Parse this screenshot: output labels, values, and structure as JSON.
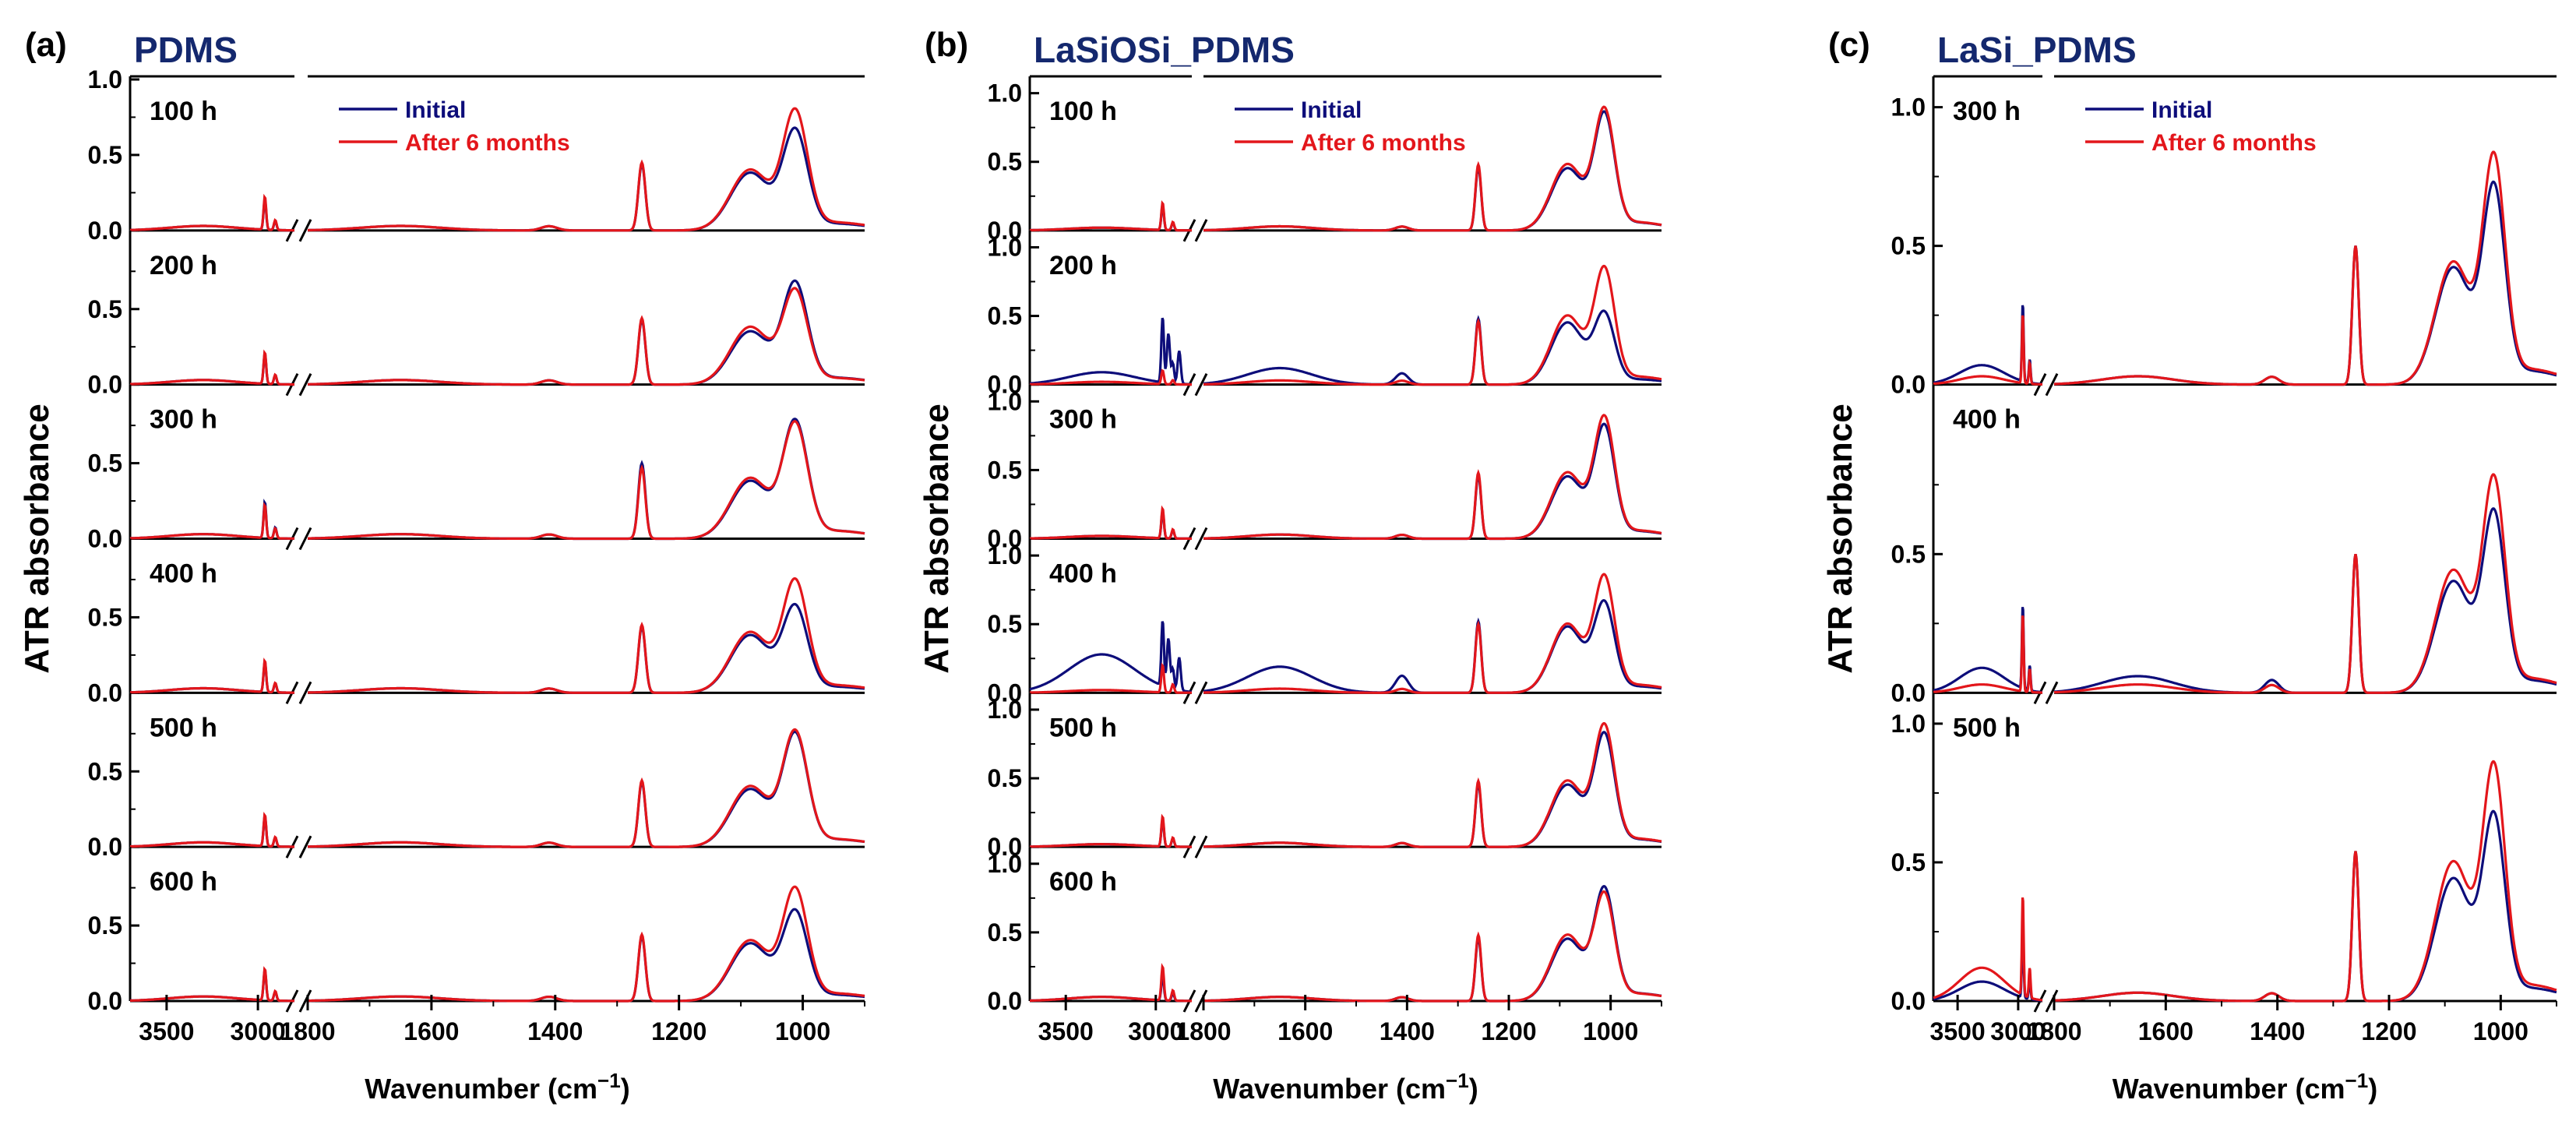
{
  "colors": {
    "initial": "#0d0d7a",
    "after": "#e3161b",
    "title": "#14286e",
    "axis": "#000000"
  },
  "chart_data": [
    {
      "type": "line",
      "panel_label": "(a)",
      "title": "PDMS",
      "xlabel": "Wavenumber (cm",
      "xlabel_sup": "−1",
      "xlabel_close": ")",
      "ylabel": "ATR absorbance",
      "x_segments": [
        [
          3700,
          2800
        ],
        [
          1800,
          900
        ]
      ],
      "x_ticks": [
        3500,
        3000,
        1800,
        1600,
        1400,
        1200,
        1000
      ],
      "legend": {
        "initial": "Initial",
        "after": "After 6 months",
        "placement": "top-center"
      },
      "subplots": [
        {
          "label": "100 h",
          "ylim": [
            0,
            1.0
          ],
          "y_ticks": [
            "0.0",
            "0.5",
            "1.0"
          ],
          "peaks_initial": [
            0.03,
            0.2,
            0.03,
            0.44,
            0.38,
            0.76
          ],
          "peaks_after": [
            0.03,
            0.22,
            0.03,
            0.45,
            0.4,
            0.89
          ]
        },
        {
          "label": "200 h",
          "ylim": [
            0,
            1.0
          ],
          "y_ticks": [
            "0.0",
            "0.5"
          ],
          "peaks_initial": [
            0.03,
            0.2,
            0.03,
            0.43,
            0.35,
            0.76
          ],
          "peaks_after": [
            0.03,
            0.21,
            0.03,
            0.44,
            0.38,
            0.72
          ]
        },
        {
          "label": "300 h",
          "ylim": [
            0,
            1.0
          ],
          "y_ticks": [
            "0.0",
            "0.5"
          ],
          "peaks_initial": [
            0.03,
            0.24,
            0.03,
            0.5,
            0.38,
            0.87
          ],
          "peaks_after": [
            0.03,
            0.22,
            0.03,
            0.47,
            0.4,
            0.86
          ]
        },
        {
          "label": "400 h",
          "ylim": [
            0,
            1.0
          ],
          "y_ticks": [
            "0.0",
            "0.5"
          ],
          "peaks_initial": [
            0.03,
            0.2,
            0.03,
            0.44,
            0.38,
            0.67
          ],
          "peaks_after": [
            0.03,
            0.21,
            0.03,
            0.45,
            0.4,
            0.84
          ]
        },
        {
          "label": "500 h",
          "ylim": [
            0,
            1.0
          ],
          "y_ticks": [
            "0.0",
            "0.5"
          ],
          "peaks_initial": [
            0.03,
            0.2,
            0.03,
            0.43,
            0.38,
            0.84
          ],
          "peaks_after": [
            0.03,
            0.21,
            0.03,
            0.44,
            0.4,
            0.86
          ]
        },
        {
          "label": "600 h",
          "ylim": [
            0,
            1.0
          ],
          "y_ticks": [
            "0.0",
            "0.5"
          ],
          "peaks_initial": [
            0.03,
            0.2,
            0.03,
            0.43,
            0.38,
            0.69
          ],
          "peaks_after": [
            0.03,
            0.21,
            0.03,
            0.44,
            0.4,
            0.84
          ]
        }
      ]
    },
    {
      "type": "line",
      "panel_label": "(b)",
      "title": "LaSiOSi_PDMS",
      "xlabel": "Wavenumber (cm",
      "xlabel_sup": "−1",
      "xlabel_close": ")",
      "ylabel": "ATR absorbance",
      "x_segments": [
        [
          3700,
          2800
        ],
        [
          1800,
          900
        ]
      ],
      "x_ticks": [
        3500,
        3000,
        1800,
        1600,
        1400,
        1200,
        1000
      ],
      "legend": {
        "initial": "Initial",
        "after": "After 6 months",
        "placement": "top-center"
      },
      "subplots": [
        {
          "label": "100 h",
          "ylim": [
            0,
            1.1
          ],
          "y_ticks": [
            "0.0",
            "0.5",
            "1.0"
          ],
          "peaks_initial": [
            0.02,
            0.18,
            0.03,
            0.46,
            0.45,
            0.96
          ],
          "peaks_after": [
            0.02,
            0.2,
            0.03,
            0.48,
            0.48,
            1.0
          ]
        },
        {
          "label": "200 h",
          "ylim": [
            0,
            1.1
          ],
          "y_ticks": [
            "0.0",
            "0.5",
            "1.0"
          ],
          "peaks_initial": [
            0.09,
            0.48,
            0.12,
            0.48,
            0.45,
            0.64
          ],
          "peaks_after": [
            0.02,
            0.1,
            0.03,
            0.46,
            0.5,
            0.97
          ]
        },
        {
          "label": "300 h",
          "ylim": [
            0,
            1.1
          ],
          "y_ticks": [
            "0.0",
            "0.5",
            "1.0"
          ],
          "peaks_initial": [
            0.02,
            0.2,
            0.03,
            0.46,
            0.45,
            0.93
          ],
          "peaks_after": [
            0.02,
            0.22,
            0.03,
            0.48,
            0.48,
            1.0
          ]
        },
        {
          "label": "400 h",
          "ylim": [
            0,
            1.1
          ],
          "y_ticks": [
            "0.0",
            "0.5",
            "1.0"
          ],
          "peaks_initial": [
            0.28,
            0.48,
            0.19,
            0.52,
            0.48,
            0.78
          ],
          "peaks_after": [
            0.02,
            0.2,
            0.03,
            0.5,
            0.5,
            0.97
          ]
        },
        {
          "label": "500 h",
          "ylim": [
            0,
            1.1
          ],
          "y_ticks": [
            "0.0",
            "0.5",
            "1.0"
          ],
          "peaks_initial": [
            0.02,
            0.2,
            0.03,
            0.46,
            0.45,
            0.93
          ],
          "peaks_after": [
            0.02,
            0.22,
            0.03,
            0.48,
            0.48,
            1.0
          ]
        },
        {
          "label": "600 h",
          "ylim": [
            0,
            1.1
          ],
          "y_ticks": [
            "0.0",
            "0.5",
            "1.0"
          ],
          "peaks_initial": [
            0.03,
            0.18,
            0.03,
            0.46,
            0.45,
            0.93
          ],
          "peaks_after": [
            0.03,
            0.25,
            0.03,
            0.48,
            0.48,
            0.9
          ]
        }
      ]
    },
    {
      "type": "line",
      "panel_label": "(c)",
      "title": "LaSi_PDMS",
      "xlabel": "Wavenumber (cm",
      "xlabel_sup": "−1",
      "xlabel_close": ")",
      "ylabel": "ATR absorbance",
      "x_segments": [
        [
          3700,
          2800
        ],
        [
          1800,
          900
        ]
      ],
      "x_ticks": [
        3500,
        3000,
        1800,
        1600,
        1400,
        1200,
        1000
      ],
      "legend": {
        "initial": "Initial",
        "after": "After 6 months",
        "placement": "top-center"
      },
      "subplots": [
        {
          "label": "300 h",
          "ylim": [
            0,
            1.1
          ],
          "y_ticks": [
            "0.0",
            "0.5",
            "1.0"
          ],
          "peaks_initial": [
            0.07,
            0.28,
            0.03,
            0.5,
            0.42,
            0.82
          ],
          "peaks_after": [
            0.03,
            0.25,
            0.03,
            0.5,
            0.44,
            0.93
          ]
        },
        {
          "label": "400 h",
          "ylim": [
            0,
            1.1
          ],
          "y_ticks": [
            "0.0",
            "0.5"
          ],
          "peaks_initial": [
            0.09,
            0.3,
            0.06,
            0.5,
            0.4,
            0.75
          ],
          "peaks_after": [
            0.03,
            0.28,
            0.03,
            0.5,
            0.44,
            0.88
          ]
        },
        {
          "label": "500 h",
          "ylim": [
            0,
            1.1
          ],
          "y_ticks": [
            "0.0",
            "0.5",
            "1.0"
          ],
          "peaks_initial": [
            0.07,
            0.25,
            0.03,
            0.54,
            0.44,
            0.78
          ],
          "peaks_after": [
            0.12,
            0.36,
            0.03,
            0.54,
            0.5,
            0.97
          ]
        }
      ]
    }
  ]
}
